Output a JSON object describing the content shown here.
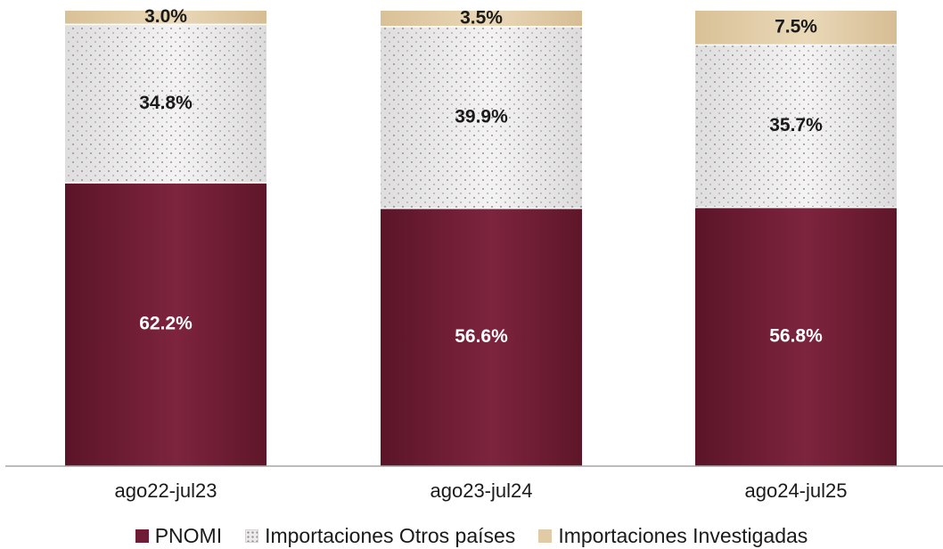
{
  "chart_data": {
    "type": "bar",
    "stacked": true,
    "normalized_percent": true,
    "categories": [
      "ago22-jul23",
      "ago23-jul24",
      "ago24-jul25"
    ],
    "series": [
      {
        "name": "PNOMI",
        "values": [
          62.2,
          56.6,
          56.8
        ],
        "labels": [
          "62.2%",
          "56.6%",
          "56.8%"
        ],
        "color": "#6f1d34",
        "label_color": "#ffffff"
      },
      {
        "name": "Importaciones Otros países",
        "values": [
          34.8,
          39.9,
          35.7
        ],
        "labels": [
          "34.8%",
          "39.9%",
          "35.7%"
        ],
        "color": "#e6e6e6",
        "pattern": "dotted",
        "label_color": "#1a1a1a"
      },
      {
        "name": "Importaciones Investigadas",
        "values": [
          3.0,
          3.5,
          7.5
        ],
        "labels": [
          "3.0%",
          "3.5%",
          "7.5%"
        ],
        "color": "#e1cba6",
        "label_color": "#1a1a1a"
      }
    ],
    "ylim": [
      0,
      100
    ],
    "legend_position": "bottom",
    "grid": false
  }
}
